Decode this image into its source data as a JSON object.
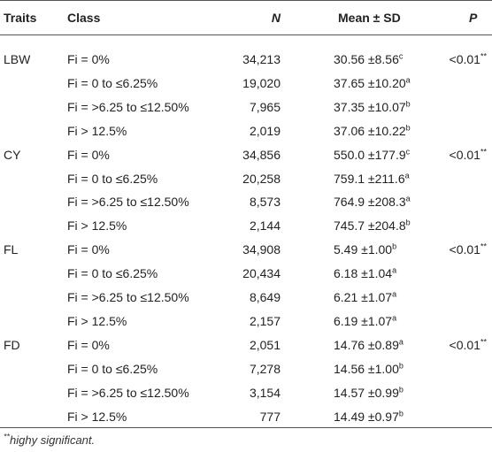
{
  "table": {
    "header": {
      "traits": "Traits",
      "class": "Class",
      "n": "N",
      "mean_sd": "Mean ± SD",
      "p": "P"
    },
    "groups": [
      {
        "trait": "LBW",
        "p": "<0.01",
        "p_sup": "**",
        "rows": [
          {
            "class": "Fi = 0%",
            "n": "34,213",
            "mean_sd": "30.56 ±8.56",
            "sup": "c"
          },
          {
            "class": "Fi = 0 to ≤6.25%",
            "n": "19,020",
            "mean_sd": "37.65 ±10.20",
            "sup": "a"
          },
          {
            "class": "Fi = >6.25 to ≤12.50%",
            "n": "7,965",
            "mean_sd": "37.35 ±10.07",
            "sup": "b"
          },
          {
            "class": "Fi > 12.5%",
            "n": "2,019",
            "mean_sd": "37.06 ±10.22",
            "sup": "b"
          }
        ]
      },
      {
        "trait": "CY",
        "p": "<0.01",
        "p_sup": "**",
        "rows": [
          {
            "class": "Fi = 0%",
            "n": "34,856",
            "mean_sd": "550.0 ±177.9",
            "sup": "c"
          },
          {
            "class": "Fi = 0 to ≤6.25%",
            "n": "20,258",
            "mean_sd": "759.1 ±211.6",
            "sup": "a"
          },
          {
            "class": "Fi = >6.25 to ≤12.50%",
            "n": "8,573",
            "mean_sd": "764.9 ±208.3",
            "sup": "a"
          },
          {
            "class": "Fi > 12.5%",
            "n": "2,144",
            "mean_sd": "745.7 ±204.8",
            "sup": "b"
          }
        ]
      },
      {
        "trait": "FL",
        "p": "<0.01",
        "p_sup": "**",
        "rows": [
          {
            "class": "Fi = 0%",
            "n": "34,908",
            "mean_sd": "5.49 ±1.00",
            "sup": "b"
          },
          {
            "class": "Fi = 0 to ≤6.25%",
            "n": "20,434",
            "mean_sd": "6.18 ±1.04",
            "sup": "a"
          },
          {
            "class": "Fi = >6.25 to ≤12.50%",
            "n": "8,649",
            "mean_sd": "6.21 ±1.07",
            "sup": "a"
          },
          {
            "class": "Fi > 12.5%",
            "n": "2,157",
            "mean_sd": "6.19 ±1.07",
            "sup": "a"
          }
        ]
      },
      {
        "trait": "FD",
        "p": "<0.01",
        "p_sup": "**",
        "rows": [
          {
            "class": "Fi = 0%",
            "n": "2,051",
            "mean_sd": "14.76 ±0.89",
            "sup": "a"
          },
          {
            "class": "Fi = 0 to ≤6.25%",
            "n": "7,278",
            "mean_sd": "14.56 ±1.00",
            "sup": "b"
          },
          {
            "class": "Fi = >6.25 to ≤12.50%",
            "n": "3,154",
            "mean_sd": "14.57 ±0.99",
            "sup": "b"
          },
          {
            "class": "Fi > 12.5%",
            "n": "777",
            "mean_sd": "14.49 ±0.97",
            "sup": "b"
          }
        ]
      }
    ]
  },
  "footnote": {
    "mark": "**",
    "text": "highy significant."
  }
}
